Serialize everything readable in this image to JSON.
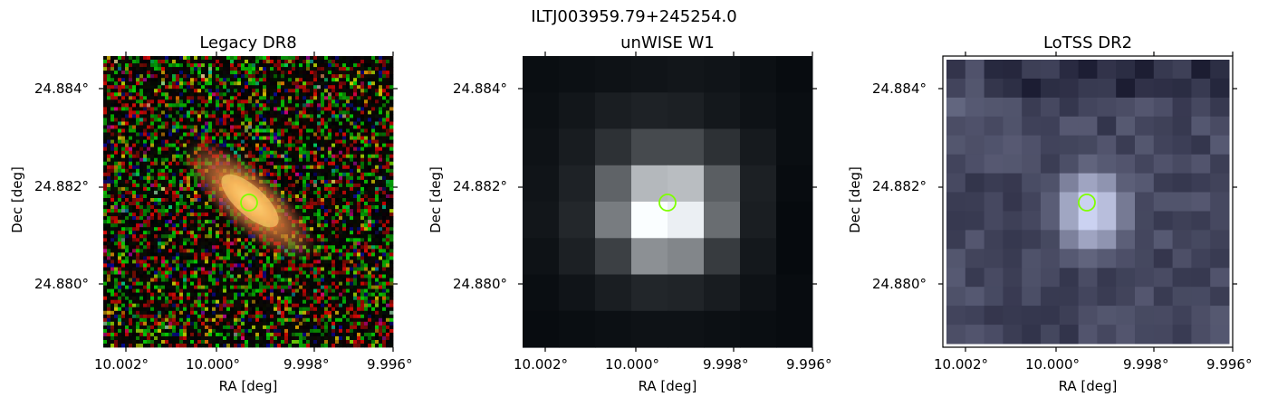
{
  "figure_title": "ILTJ003959.79+245254.0",
  "panels": [
    {
      "title": "Legacy DR8",
      "xlabel": "RA [deg]",
      "ylabel": "Dec [deg]",
      "xticks": [
        "10.002°",
        "10.000°",
        "9.998°",
        "9.996°"
      ],
      "yticks": [
        "24.884°",
        "24.882°",
        "24.880°"
      ]
    },
    {
      "title": "unWISE W1",
      "xlabel": "RA [deg]",
      "ylabel": "Dec [deg]",
      "xticks": [
        "10.002°",
        "10.000°",
        "9.998°",
        "9.996°"
      ],
      "yticks": [
        "24.884°",
        "24.882°",
        "24.880°"
      ]
    },
    {
      "title": "LoTSS DR2",
      "xlabel": "RA [deg]",
      "ylabel": "Dec [deg]",
      "xticks": [
        "10.002°",
        "10.000°",
        "9.998°",
        "9.996°"
      ],
      "yticks": [
        "24.884°",
        "24.882°",
        "24.880°"
      ]
    }
  ],
  "marker_color": "#7fff00"
}
